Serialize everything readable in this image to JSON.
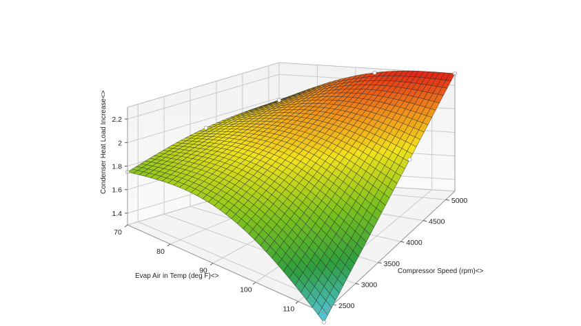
{
  "chart_data": {
    "type": "surface",
    "title": "",
    "zlabel": "Condenser Heat Load Increase<>",
    "xlabel": "Evap Air in Temp (deg F)<>",
    "ylabel": "Compressor Speed (rpm)<>",
    "x_ticks": [
      "70",
      "80",
      "90",
      "100",
      "110"
    ],
    "y_ticks": [
      "2500",
      "3000",
      "3500",
      "4000",
      "4500",
      "5000"
    ],
    "z_ticks": [
      "1.4",
      "1.6",
      "1.8",
      "2",
      "2.2"
    ],
    "xlim": [
      70,
      116
    ],
    "ylim": [
      2300,
      5200
    ],
    "zlim": [
      1.3,
      2.3
    ],
    "corner_values": [
      {
        "evap_temp": 70,
        "speed": 2300,
        "load": 1.75
      },
      {
        "evap_temp": 116,
        "speed": 2300,
        "load": 1.22
      },
      {
        "evap_temp": 70,
        "speed": 5200,
        "load": 1.98
      },
      {
        "evap_temp": 116,
        "speed": 5200,
        "load": 2.3
      }
    ],
    "colormap": [
      "#55c8e8",
      "#2e9e3e",
      "#7cc21e",
      "#f2e21c",
      "#f08a1c",
      "#e02418"
    ],
    "grid": true,
    "legend": false
  }
}
